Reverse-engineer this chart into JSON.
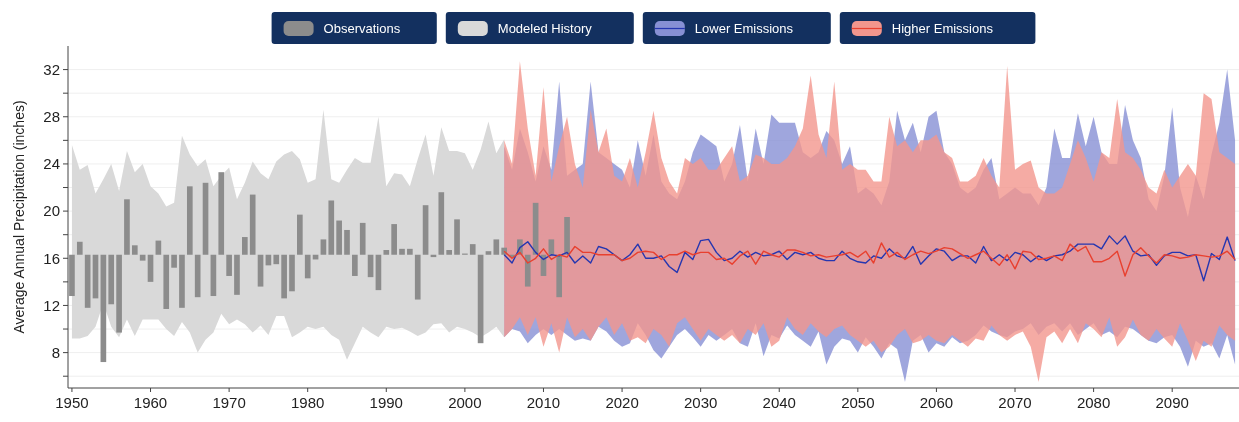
{
  "chart_data": {
    "type": "bar",
    "ylabel": "Average Annual Precipitation (inches)",
    "xlim": [
      1949.5,
      2098.5
    ],
    "ylim": [
      5,
      34
    ],
    "xticks": [
      1950,
      1960,
      1970,
      1980,
      1990,
      2000,
      2010,
      2020,
      2030,
      2040,
      2050,
      2060,
      2070,
      2080,
      2090
    ],
    "yticks": [
      {
        "value": 6,
        "label": null
      },
      8,
      {
        "value": 10,
        "label": null
      },
      12,
      {
        "value": 14,
        "label": null
      },
      16,
      {
        "value": 18,
        "label": null
      },
      20,
      {
        "value": 22,
        "label": null
      },
      24,
      {
        "value": 26,
        "label": null
      },
      28,
      {
        "value": 30,
        "label": null
      },
      32
    ],
    "grid": "y",
    "legend": "top",
    "series": [
      {
        "name": "Observations",
        "color": "#8c8c8c",
        "x": [
          1950,
          1951,
          1952,
          1953,
          1954,
          1955,
          1956,
          1957,
          1958,
          1959,
          1960,
          1961,
          1962,
          1963,
          1964,
          1965,
          1966,
          1967,
          1968,
          1969,
          1970,
          1971,
          1972,
          1973,
          1974,
          1975,
          1976,
          1977,
          1978,
          1979,
          1980,
          1981,
          1982,
          1983,
          1984,
          1985,
          1986,
          1987,
          1988,
          1989,
          1990,
          1991,
          1992,
          1993,
          1994,
          1995,
          1996,
          1997,
          1998,
          1999,
          2000,
          2001,
          2002,
          2003,
          2004,
          2005,
          2006,
          2007,
          2008,
          2009,
          2010,
          2011,
          2012,
          2013
        ],
        "base": [
          16.3,
          16.3,
          16.3,
          16.3,
          16.3,
          16.3,
          16.3,
          16.3,
          16.3,
          16.3,
          16.3,
          16.3,
          16.3,
          16.3,
          16.3,
          16.3,
          16.3,
          16.3,
          16.3,
          16.3,
          16.3,
          16.3,
          16.3,
          16.3,
          16.3,
          16.3,
          16.3,
          16.3,
          16.3,
          16.3,
          16.3,
          16.3,
          16.3,
          16.3,
          16.3,
          16.3,
          16.3,
          16.3,
          16.3,
          16.3,
          16.3,
          16.3,
          16.3,
          16.3,
          16.3,
          16.3,
          16.3,
          16.3,
          16.3,
          16.3,
          16.3,
          16.3,
          16.3,
          16.3,
          16.3,
          16.3,
          16.3,
          16.3,
          16.3,
          16.3,
          16.3,
          16.3,
          16.3,
          16.3
        ],
        "values": [
          -3.5,
          1.1,
          -4.5,
          -3.7,
          -9.1,
          -4.2,
          -6.6,
          4.7,
          0.8,
          -0.5,
          -2.3,
          1.2,
          -4.6,
          -1.1,
          -4.5,
          5.8,
          -3.6,
          6.1,
          -3.5,
          7.0,
          -1.8,
          -3.4,
          1.5,
          5.1,
          -2.7,
          -0.9,
          -0.8,
          -3.7,
          -3.1,
          3.4,
          -2.0,
          -0.4,
          1.3,
          4.6,
          2.9,
          2.1,
          -1.8,
          2.7,
          -1.9,
          -3.0,
          0.4,
          2.6,
          0.5,
          0.5,
          -3.8,
          4.2,
          -0.2,
          5.3,
          0.4,
          3.0,
          0.1,
          0.9,
          -7.5,
          0.3,
          1.3,
          0.6,
          -0.2,
          1.3,
          -2.7,
          4.4,
          -1.8,
          1.3,
          -3.6,
          3.2
        ]
      },
      {
        "name": "Modeled History",
        "type": "line",
        "color": "#d9d9d9",
        "x": [
          1950,
          1951,
          1952,
          1953,
          1954,
          1955,
          1956,
          1957,
          1958,
          1959,
          1960,
          1961,
          1962,
          1963,
          1964,
          1965,
          1966,
          1967,
          1968,
          1969,
          1970,
          1971,
          1972,
          1973,
          1974,
          1975,
          1976,
          1977,
          1978,
          1979,
          1980,
          1981,
          1982,
          1983,
          1984,
          1985,
          1986,
          1987,
          1988,
          1989,
          1990,
          1991,
          1992,
          1993,
          1994,
          1995,
          1996,
          1997,
          1998,
          1999,
          2000,
          2001,
          2002,
          2003,
          2004,
          2005
        ],
        "values": [
          null,
          null,
          null,
          null,
          null,
          null,
          null,
          null,
          null,
          null,
          null,
          null,
          null,
          null,
          null,
          null,
          null,
          null,
          null,
          null,
          null,
          null,
          null,
          null,
          null,
          null,
          null,
          null,
          null,
          null,
          null,
          null,
          null,
          null,
          null,
          null,
          null,
          null,
          null,
          null,
          null,
          null,
          null,
          null,
          null,
          null,
          null,
          null,
          null,
          null,
          null,
          null,
          null,
          null,
          null,
          null
        ],
        "upper": [
          25.6,
          23.5,
          23.9,
          21.5,
          22.7,
          24.0,
          21.7,
          25.1,
          23.3,
          24.0,
          22.1,
          21.5,
          20.4,
          20.7,
          26.4,
          24.8,
          23.8,
          24.4,
          22.1,
          23.0,
          23.7,
          21.0,
          22.4,
          24.2,
          23.2,
          22.7,
          24.2,
          24.8,
          25.1,
          24.4,
          22.4,
          22.7,
          28.6,
          22.7,
          22.4,
          23.5,
          24.5,
          24.1,
          24.1,
          28.0,
          22.1,
          23.2,
          23.1,
          22.1,
          24.4,
          26.5,
          23.0,
          27.1,
          25.1,
          25.1,
          24.9,
          23.5,
          25.2,
          27.6,
          24.9,
          26.1
        ],
        "lower": [
          9.2,
          9.2,
          9.4,
          10.2,
          12.2,
          10.2,
          9.3,
          10.8,
          9.4,
          10.8,
          10.8,
          10.8,
          10.0,
          9.4,
          10.6,
          9.7,
          8.0,
          9.1,
          9.7,
          11.3,
          10.4,
          10.8,
          10.4,
          9.7,
          10.3,
          9.5,
          11.1,
          11.1,
          9.3,
          9.7,
          10.2,
          10.0,
          10.2,
          9.5,
          9.1,
          7.4,
          8.8,
          10.2,
          9.7,
          9.3,
          10.2,
          10.0,
          10.1,
          9.8,
          9.4,
          9.7,
          10.4,
          10.5,
          9.7,
          10.2,
          10.0,
          9.7,
          9.3,
          9.7,
          10.2,
          9.3
        ]
      },
      {
        "name": "Lower Emissions",
        "type": "line",
        "color": "#2536b0",
        "x": [
          2005,
          2006,
          2007,
          2008,
          2009,
          2010,
          2011,
          2012,
          2013,
          2014,
          2015,
          2016,
          2017,
          2018,
          2019,
          2020,
          2021,
          2022,
          2023,
          2024,
          2025,
          2026,
          2027,
          2028,
          2029,
          2030,
          2031,
          2032,
          2033,
          2034,
          2035,
          2036,
          2037,
          2038,
          2039,
          2040,
          2041,
          2042,
          2043,
          2044,
          2045,
          2046,
          2047,
          2048,
          2049,
          2050,
          2051,
          2052,
          2053,
          2054,
          2055,
          2056,
          2057,
          2058,
          2059,
          2060,
          2061,
          2062,
          2063,
          2064,
          2065,
          2066,
          2067,
          2068,
          2069,
          2070,
          2071,
          2072,
          2073,
          2074,
          2075,
          2076,
          2077,
          2078,
          2079,
          2080,
          2081,
          2082,
          2083,
          2084,
          2085,
          2086,
          2087,
          2088,
          2089,
          2090,
          2091,
          2092,
          2093,
          2094,
          2095,
          2096,
          2097,
          2098
        ],
        "values": [
          16.3,
          15.6,
          16.9,
          17.4,
          16.5,
          15.9,
          16.3,
          16.2,
          16.5,
          15.6,
          16.2,
          15.6,
          17.0,
          16.8,
          16.3,
          15.8,
          16.3,
          17.2,
          16.0,
          16.0,
          16.2,
          15.3,
          14.8,
          16.5,
          15.9,
          17.5,
          17.6,
          16.5,
          15.8,
          16.0,
          16.6,
          16.1,
          16.5,
          16.2,
          16.3,
          16.6,
          15.9,
          16.5,
          16.3,
          16.5,
          16.0,
          15.8,
          15.8,
          16.6,
          16.0,
          15.7,
          15.6,
          16.2,
          16.0,
          16.8,
          16.2,
          16.0,
          17.0,
          15.5,
          16.2,
          16.8,
          16.6,
          15.8,
          16.2,
          16.2,
          15.6,
          17.0,
          15.8,
          16.3,
          15.8,
          16.5,
          16.3,
          15.7,
          16.2,
          15.8,
          16.2,
          16.3,
          16.6,
          17.2,
          17.2,
          17.2,
          16.8,
          17.9,
          17.2,
          17.9,
          16.6,
          16.2,
          16.3,
          15.4,
          16.2,
          16.5,
          16.5,
          16.2,
          16.3,
          14.1,
          16.4,
          15.9,
          17.8,
          15.8
        ],
        "upper": [
          25.5,
          23.5,
          27.0,
          25.0,
          22.5,
          25.5,
          23.5,
          31.0,
          23.0,
          23.5,
          24.0,
          31.0,
          25.0,
          24.5,
          24.0,
          23.5,
          22.0,
          26.0,
          23.0,
          26.5,
          22.5,
          21.5,
          21.0,
          22.5,
          25.0,
          26.5,
          26.0,
          25.5,
          22.5,
          24.0,
          27.3,
          22.5,
          27.0,
          24.0,
          28.2,
          27.5,
          27.5,
          27.5,
          25.0,
          24.5,
          25.0,
          26.8,
          26.0,
          24.0,
          25.5,
          21.5,
          22.0,
          21.5,
          20.5,
          22.5,
          28.5,
          26.0,
          27.5,
          25.0,
          28.0,
          28.5,
          25.0,
          24.0,
          22.0,
          21.5,
          22.0,
          23.5,
          24.5,
          21.0,
          21.5,
          22.0,
          21.5,
          21.5,
          20.5,
          22.0,
          27.0,
          24.5,
          24.5,
          28.3,
          25.5,
          28.0,
          25.0,
          24.0,
          24.0,
          29.0,
          26.0,
          24.5,
          21.0,
          20.0,
          23.0,
          28.8,
          22.0,
          19.5,
          23.0,
          21.0,
          24.8,
          27.5,
          32.0,
          26.0
        ],
        "lower": [
          9.3,
          10.0,
          9.8,
          8.8,
          9.5,
          10.0,
          9.5,
          10.0,
          9.5,
          9.0,
          9.2,
          9.0,
          10.2,
          9.8,
          9.0,
          8.5,
          8.8,
          10.5,
          9.5,
          8.2,
          7.5,
          8.5,
          9.5,
          10.0,
          9.3,
          8.5,
          9.5,
          9.0,
          9.5,
          10.0,
          8.8,
          8.5,
          10.5,
          7.7,
          9.5,
          9.2,
          10.3,
          9.5,
          9.0,
          8.5,
          9.8,
          7.0,
          8.5,
          9.2,
          9.0,
          8.0,
          9.3,
          8.5,
          7.5,
          8.8,
          8.3,
          5.5,
          9.0,
          9.5,
          8.0,
          8.8,
          8.5,
          9.3,
          8.8,
          9.0,
          9.5,
          10.3,
          9.8,
          9.5,
          9.3,
          9.8,
          10.0,
          10.5,
          9.5,
          10.2,
          10.5,
          9.8,
          10.5,
          9.5,
          10.0,
          10.5,
          9.5,
          9.8,
          9.3,
          10.2,
          10.0,
          9.5,
          9.0,
          8.8,
          9.3,
          9.5,
          8.5,
          6.8,
          9.0,
          8.5,
          8.8,
          7.5,
          9.5,
          7.0
        ]
      },
      {
        "name": "Higher Emissions",
        "type": "line",
        "color": "#e8402f",
        "x": [
          2005,
          2006,
          2007,
          2008,
          2009,
          2010,
          2011,
          2012,
          2013,
          2014,
          2015,
          2016,
          2017,
          2018,
          2019,
          2020,
          2021,
          2022,
          2023,
          2024,
          2025,
          2026,
          2027,
          2028,
          2029,
          2030,
          2031,
          2032,
          2033,
          2034,
          2035,
          2036,
          2037,
          2038,
          2039,
          2040,
          2041,
          2042,
          2043,
          2044,
          2045,
          2046,
          2047,
          2048,
          2049,
          2050,
          2051,
          2052,
          2053,
          2054,
          2055,
          2056,
          2057,
          2058,
          2059,
          2060,
          2061,
          2062,
          2063,
          2064,
          2065,
          2066,
          2067,
          2068,
          2069,
          2070,
          2071,
          2072,
          2073,
          2074,
          2075,
          2076,
          2077,
          2078,
          2079,
          2080,
          2081,
          2082,
          2083,
          2084,
          2085,
          2086,
          2087,
          2088,
          2089,
          2090,
          2091,
          2092,
          2093,
          2094,
          2095,
          2096,
          2097,
          2098
        ],
        "values": [
          16.6,
          16.0,
          16.5,
          15.6,
          16.0,
          16.8,
          15.9,
          16.3,
          16.1,
          17.0,
          16.5,
          16.5,
          16.3,
          16.3,
          16.3,
          15.8,
          16.0,
          16.5,
          16.6,
          16.5,
          15.9,
          16.3,
          16.3,
          16.6,
          16.3,
          16.5,
          16.5,
          15.9,
          16.0,
          15.5,
          16.2,
          16.6,
          15.5,
          16.6,
          16.3,
          16.1,
          16.7,
          16.7,
          16.5,
          16.2,
          16.3,
          16.1,
          16.2,
          16.3,
          16.5,
          16.1,
          16.6,
          15.6,
          17.3,
          16.1,
          16.5,
          15.9,
          16.3,
          16.6,
          16.4,
          16.6,
          16.9,
          16.8,
          16.4,
          16.0,
          16.3,
          16.6,
          16.0,
          15.4,
          16.3,
          15.1,
          16.6,
          16.5,
          15.9,
          16.0,
          16.2,
          15.8,
          17.2,
          16.6,
          17.0,
          15.7,
          15.7,
          16.0,
          16.6,
          14.5,
          16.3,
          16.9,
          16.2,
          15.6,
          16.3,
          16.2,
          16.0,
          16.1,
          16.3,
          16.2,
          16.1,
          16.2,
          16.6,
          15.9
        ],
        "upper": [
          26.0,
          24.0,
          32.7,
          27.0,
          23.0,
          30.5,
          22.5,
          25.5,
          28.0,
          24.0,
          22.0,
          28.6,
          25.0,
          27.0,
          23.0,
          22.5,
          24.5,
          22.0,
          25.0,
          28.5,
          24.5,
          22.5,
          21.5,
          24.5,
          24.0,
          24.5,
          23.5,
          23.5,
          24.5,
          25.5,
          22.5,
          23.0,
          24.8,
          24.5,
          24.0,
          24.0,
          24.5,
          25.5,
          27.0,
          31.5,
          26.5,
          24.5,
          31.0,
          23.5,
          24.0,
          23.5,
          23.5,
          22.5,
          22.5,
          28.0,
          25.5,
          26.0,
          25.0,
          26.0,
          26.0,
          26.5,
          25.0,
          24.5,
          22.5,
          22.5,
          23.0,
          24.5,
          23.0,
          22.0,
          32.3,
          23.5,
          24.0,
          24.3,
          22.0,
          21.5,
          21.5,
          22.0,
          24.0,
          26.0,
          24.5,
          22.5,
          25.0,
          24.5,
          29.5,
          25.0,
          24.5,
          23.5,
          22.0,
          21.5,
          23.5,
          22.0,
          23.0,
          24.0,
          23.0,
          30.0,
          29.5,
          25.0,
          24.5,
          24.0
        ],
        "lower": [
          9.3,
          10.0,
          11.0,
          9.5,
          11.0,
          8.5,
          10.5,
          8.0,
          11.0,
          9.3,
          10.0,
          9.0,
          10.2,
          11.0,
          9.5,
          10.5,
          9.0,
          9.3,
          8.8,
          10.0,
          9.5,
          8.5,
          10.5,
          11.0,
          10.0,
          9.0,
          10.0,
          9.5,
          9.0,
          9.5,
          8.8,
          10.0,
          9.5,
          10.5,
          8.5,
          9.0,
          11.0,
          10.0,
          9.5,
          10.5,
          9.8,
          9.3,
          10.0,
          10.3,
          9.5,
          9.0,
          8.5,
          9.0,
          8.0,
          8.5,
          9.5,
          10.0,
          8.8,
          9.0,
          9.5,
          9.0,
          8.8,
          9.5,
          9.0,
          8.5,
          9.2,
          9.0,
          10.3,
          9.5,
          9.0,
          9.5,
          9.8,
          8.5,
          5.5,
          9.3,
          9.8,
          8.8,
          10.0,
          8.8,
          10.5,
          10.0,
          9.3,
          11.0,
          8.5,
          9.3,
          10.8,
          9.5,
          9.0,
          10.0,
          9.2,
          8.5,
          10.5,
          9.0,
          7.3,
          9.0,
          8.5,
          10.3,
          9.5,
          9.0
        ]
      }
    ]
  }
}
